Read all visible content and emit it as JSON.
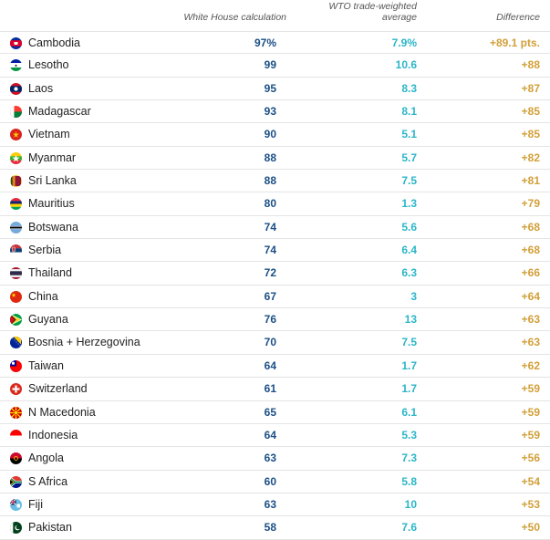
{
  "header": {
    "white_house": "White House calculation",
    "wto_line1": "WTO trade-weighted",
    "wto_line2": "average",
    "difference": "Difference"
  },
  "colors": {
    "white_house": "#1b4f86",
    "wto": "#2bb5c8",
    "difference": "#d2a03a"
  },
  "chart_data": {
    "type": "table",
    "columns": [
      "",
      "White House calculation",
      "WTO trade-weighted average",
      "Difference"
    ],
    "rows": [
      {
        "country": "Cambodia",
        "flag": "cambodia-flag-icon",
        "white_house": "97%",
        "wto": "7.9%",
        "difference": "+89.1 pts."
      },
      {
        "country": "Lesotho",
        "flag": "lesotho-flag-icon",
        "white_house": "99",
        "wto": "10.6",
        "difference": "+88"
      },
      {
        "country": "Laos",
        "flag": "laos-flag-icon",
        "white_house": "95",
        "wto": "8.3",
        "difference": "+87"
      },
      {
        "country": "Madagascar",
        "flag": "madagascar-flag-icon",
        "white_house": "93",
        "wto": "8.1",
        "difference": "+85"
      },
      {
        "country": "Vietnam",
        "flag": "vietnam-flag-icon",
        "white_house": "90",
        "wto": "5.1",
        "difference": "+85"
      },
      {
        "country": "Myanmar",
        "flag": "myanmar-flag-icon",
        "white_house": "88",
        "wto": "5.7",
        "difference": "+82"
      },
      {
        "country": "Sri Lanka",
        "flag": "sri-lanka-flag-icon",
        "white_house": "88",
        "wto": "7.5",
        "difference": "+81"
      },
      {
        "country": "Mauritius",
        "flag": "mauritius-flag-icon",
        "white_house": "80",
        "wto": "1.3",
        "difference": "+79"
      },
      {
        "country": "Botswana",
        "flag": "botswana-flag-icon",
        "white_house": "74",
        "wto": "5.6",
        "difference": "+68"
      },
      {
        "country": "Serbia",
        "flag": "serbia-flag-icon",
        "white_house": "74",
        "wto": "6.4",
        "difference": "+68"
      },
      {
        "country": "Thailand",
        "flag": "thailand-flag-icon",
        "white_house": "72",
        "wto": "6.3",
        "difference": "+66"
      },
      {
        "country": "China",
        "flag": "china-flag-icon",
        "white_house": "67",
        "wto": "3",
        "difference": "+64"
      },
      {
        "country": "Guyana",
        "flag": "guyana-flag-icon",
        "white_house": "76",
        "wto": "13",
        "difference": "+63"
      },
      {
        "country": "Bosnia + Herzegovina",
        "flag": "bosnia-flag-icon",
        "white_house": "70",
        "wto": "7.5",
        "difference": "+63"
      },
      {
        "country": "Taiwan",
        "flag": "taiwan-flag-icon",
        "white_house": "64",
        "wto": "1.7",
        "difference": "+62"
      },
      {
        "country": "Switzerland",
        "flag": "switzerland-flag-icon",
        "white_house": "61",
        "wto": "1.7",
        "difference": "+59"
      },
      {
        "country": "N Macedonia",
        "flag": "north-macedonia-flag-icon",
        "white_house": "65",
        "wto": "6.1",
        "difference": "+59"
      },
      {
        "country": "Indonesia",
        "flag": "indonesia-flag-icon",
        "white_house": "64",
        "wto": "5.3",
        "difference": "+59"
      },
      {
        "country": "Angola",
        "flag": "angola-flag-icon",
        "white_house": "63",
        "wto": "7.3",
        "difference": "+56"
      },
      {
        "country": "S Africa",
        "flag": "south-africa-flag-icon",
        "white_house": "60",
        "wto": "5.8",
        "difference": "+54"
      },
      {
        "country": "Fiji",
        "flag": "fiji-flag-icon",
        "white_house": "63",
        "wto": "10",
        "difference": "+53"
      },
      {
        "country": "Pakistan",
        "flag": "pakistan-flag-icon",
        "white_house": "58",
        "wto": "7.6",
        "difference": "+50"
      }
    ]
  }
}
